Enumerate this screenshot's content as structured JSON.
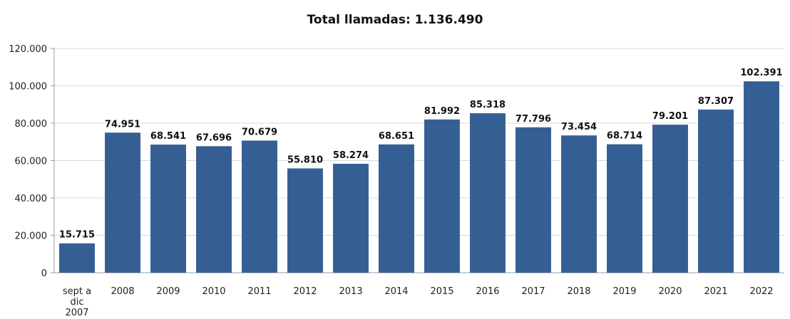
{
  "chart_data": {
    "type": "bar",
    "title": "Total llamadas: 1.136.490",
    "xlabel": "",
    "ylabel": "",
    "categories": [
      [
        "sept a",
        "dic",
        "2007"
      ],
      "2008",
      "2009",
      "2010",
      "2011",
      "2012",
      "2013",
      "2014",
      "2015",
      "2016",
      "2017",
      "2018",
      "2019",
      "2020",
      "2021",
      "2022"
    ],
    "values": [
      15715,
      74951,
      68541,
      67696,
      70679,
      55810,
      58274,
      68651,
      81992,
      85318,
      77796,
      73454,
      68714,
      79201,
      87307,
      102391
    ],
    "value_labels": [
      "15.715",
      "74.951",
      "68.541",
      "67.696",
      "70.679",
      "55.810",
      "58.274",
      "68.651",
      "81.992",
      "85.318",
      "77.796",
      "73.454",
      "68.714",
      "79.201",
      "87.307",
      "102.391"
    ],
    "ylim": [
      0,
      120000
    ],
    "yticks": [
      0,
      20000,
      40000,
      60000,
      80000,
      100000,
      120000
    ],
    "ytick_labels": [
      "0",
      "20.000",
      "40.000",
      "60.000",
      "80.000",
      "100.000",
      "120.000"
    ],
    "grid": true,
    "bar_color": "#355F93",
    "grid_color": "#D9D9D9"
  }
}
